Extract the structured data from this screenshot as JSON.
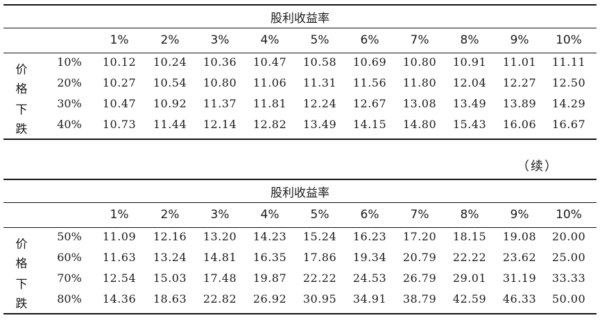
{
  "table1": {
    "header_title": "股利收益率",
    "row_group_label": [
      "价",
      "格",
      "下",
      "跌"
    ],
    "columns": [
      "1%",
      "2%",
      "3%",
      "4%",
      "5%",
      "6%",
      "7%",
      "8%",
      "9%",
      "10%"
    ],
    "rows": [
      {
        "label": "10%",
        "values": [
          "10.12",
          "10.24",
          "10.36",
          "10.47",
          "10.58",
          "10.69",
          "10.80",
          "10.91",
          "11.01",
          "11.11"
        ]
      },
      {
        "label": "20%",
        "values": [
          "10.27",
          "10.54",
          "10.80",
          "11.06",
          "11.31",
          "11.56",
          "11.80",
          "12.04",
          "12.27",
          "12.50"
        ]
      },
      {
        "label": "30%",
        "values": [
          "10.47",
          "10.92",
          "11.37",
          "11.81",
          "12.24",
          "12.67",
          "13.08",
          "13.49",
          "13.89",
          "14.29"
        ]
      },
      {
        "label": "40%",
        "values": [
          "10.73",
          "11.44",
          "12.14",
          "12.82",
          "13.49",
          "14.15",
          "14.80",
          "15.43",
          "16.06",
          "16.67"
        ]
      }
    ]
  },
  "continued_label": "（续）",
  "table2": {
    "header_title": "股利收益率",
    "row_group_label": [
      "价",
      "格",
      "下",
      "跌"
    ],
    "columns": [
      "1%",
      "2%",
      "3%",
      "4%",
      "5%",
      "6%",
      "7%",
      "8%",
      "9%",
      "10%"
    ],
    "rows": [
      {
        "label": "50%",
        "values": [
          "11.09",
          "12.16",
          "13.20",
          "14.23",
          "15.24",
          "16.23",
          "17.20",
          "18.15",
          "19.08",
          "20.00"
        ]
      },
      {
        "label": "60%",
        "values": [
          "11.63",
          "13.24",
          "14.81",
          "16.35",
          "17.86",
          "19.34",
          "20.79",
          "22.22",
          "23.62",
          "25.00"
        ]
      },
      {
        "label": "70%",
        "values": [
          "12.54",
          "15.03",
          "17.48",
          "19.87",
          "22.22",
          "24.53",
          "26.79",
          "29.01",
          "31.19",
          "33.33"
        ]
      },
      {
        "label": "80%",
        "values": [
          "14.36",
          "18.63",
          "22.82",
          "26.92",
          "30.95",
          "34.91",
          "38.79",
          "42.59",
          "46.33",
          "50.00"
        ]
      }
    ]
  }
}
